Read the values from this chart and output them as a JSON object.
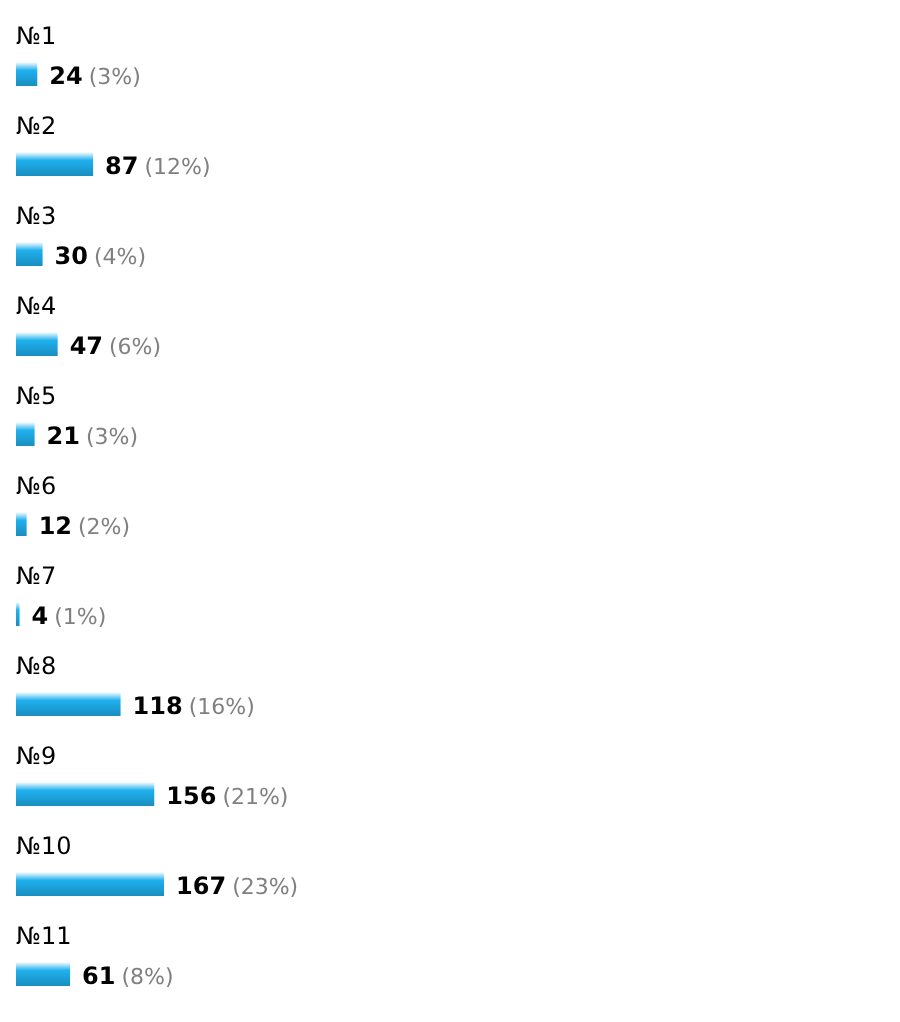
{
  "chart_data": {
    "type": "bar",
    "orientation": "horizontal",
    "categories": [
      "№1",
      "№2",
      "№3",
      "№4",
      "№5",
      "№6",
      "№7",
      "№8",
      "№9",
      "№10",
      "№11"
    ],
    "values": [
      24,
      87,
      30,
      47,
      21,
      12,
      4,
      118,
      156,
      167,
      61
    ],
    "value_labels": [
      "24 (3%)",
      "87 (12%)",
      "30 (4%)",
      "47 (6%)",
      "21 (3%)",
      "12 (2%)",
      "4 (1%)",
      "118 (16%)",
      "156 (21%)",
      "167 (23%)",
      "61 (8%)"
    ],
    "color": "#1fb0ee"
  }
}
